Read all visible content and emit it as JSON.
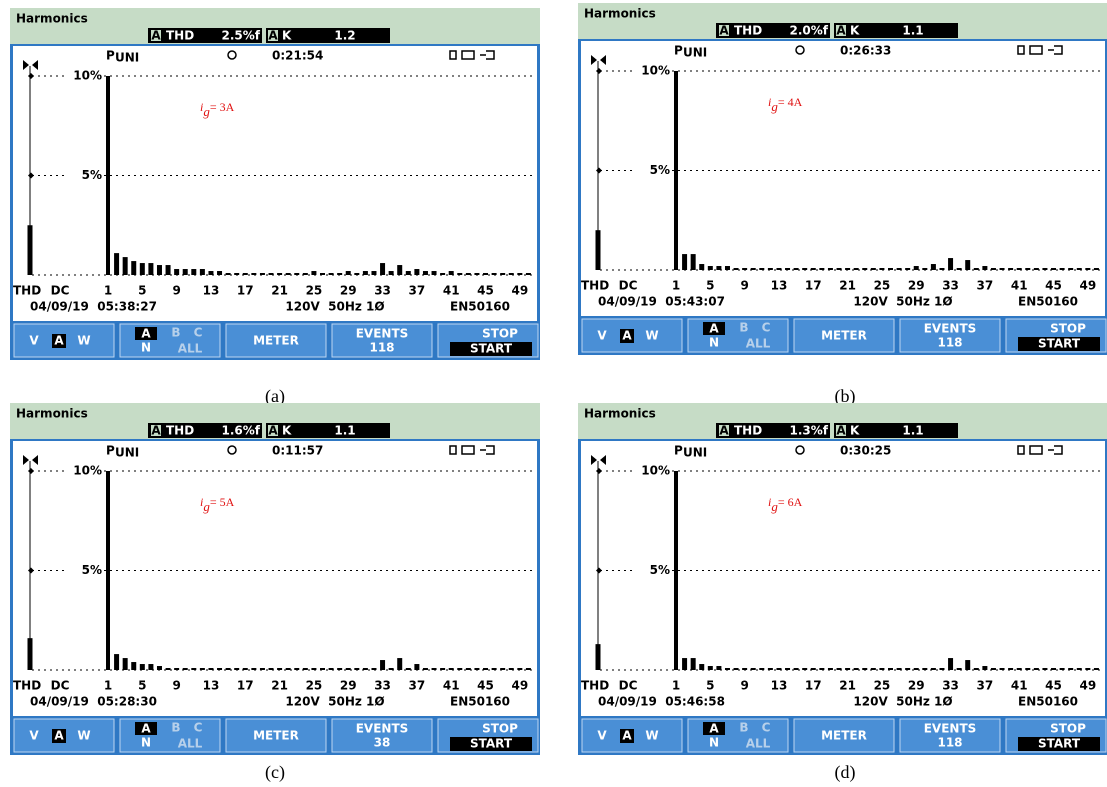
{
  "chart_data": [
    {
      "type": "bar",
      "color": "#000000",
      "annotation": {
        "symbol": "i",
        "subscript": "g",
        "text": "= 3A"
      },
      "categories": [
        "THD",
        "DC",
        "1",
        null,
        null,
        null,
        "5",
        null,
        null,
        null,
        "9",
        null,
        null,
        null,
        "13",
        null,
        null,
        null,
        "17",
        null,
        null,
        null,
        "21",
        null,
        null,
        null,
        "25",
        null,
        null,
        null,
        "29",
        null,
        null,
        null,
        "33",
        null,
        null,
        null,
        "37",
        null,
        null,
        null,
        "41",
        null,
        null,
        null,
        "45",
        null,
        null,
        null,
        "49",
        null
      ],
      "values": [
        2.5,
        0,
        10,
        1.1,
        0.9,
        0.7,
        0.6,
        0.6,
        0.5,
        0.5,
        0.3,
        0.3,
        0.3,
        0.3,
        0.2,
        0.2,
        0.1,
        0.1,
        0.1,
        0.1,
        0.1,
        0.1,
        0.1,
        0.1,
        0.1,
        0.1,
        0.2,
        0.1,
        0.1,
        0.1,
        0.2,
        0.1,
        0.2,
        0.2,
        0.6,
        0.2,
        0.5,
        0.2,
        0.3,
        0.2,
        0.2,
        0.1,
        0.2,
        0.1,
        0.1,
        0.1,
        0.1,
        0.1,
        0.1,
        0.1,
        0.1,
        0.1
      ],
      "ylim": [
        0,
        10
      ],
      "yticks": [
        {
          "value": 5,
          "label": "5%"
        },
        {
          "value": 10,
          "label": "10%"
        }
      ],
      "grid": true
    },
    {
      "type": "bar",
      "color": "#000000",
      "annotation": {
        "symbol": "i",
        "subscript": "g",
        "text": "= 4A"
      },
      "categories": [
        "THD",
        "DC",
        "1",
        null,
        null,
        null,
        "5",
        null,
        null,
        null,
        "9",
        null,
        null,
        null,
        "13",
        null,
        null,
        null,
        "17",
        null,
        null,
        null,
        "21",
        null,
        null,
        null,
        "25",
        null,
        null,
        null,
        "29",
        null,
        null,
        null,
        "33",
        null,
        null,
        null,
        "37",
        null,
        null,
        null,
        "41",
        null,
        null,
        null,
        "45",
        null,
        null,
        null,
        "49",
        null
      ],
      "values": [
        2.0,
        0,
        10,
        0.8,
        0.8,
        0.3,
        0.2,
        0.2,
        0.2,
        0.1,
        0.1,
        0.1,
        0.1,
        0.1,
        0.1,
        0.1,
        0.1,
        0.1,
        0.1,
        0.1,
        0.1,
        0.1,
        0.1,
        0.1,
        0.1,
        0.1,
        0.1,
        0.1,
        0.1,
        0.1,
        0.2,
        0.1,
        0.3,
        0.1,
        0.6,
        0.1,
        0.5,
        0.1,
        0.2,
        0.1,
        0.1,
        0.1,
        0.1,
        0.1,
        0.1,
        0.1,
        0.1,
        0.1,
        0.1,
        0.1,
        0.1,
        0.1
      ],
      "ylim": [
        0,
        10
      ],
      "yticks": [
        {
          "value": 5,
          "label": "5%"
        },
        {
          "value": 10,
          "label": "10%"
        }
      ],
      "grid": true
    },
    {
      "type": "bar",
      "color": "#000000",
      "annotation": {
        "symbol": "i",
        "subscript": "g",
        "text": "= 5A"
      },
      "categories": [
        "THD",
        "DC",
        "1",
        null,
        null,
        null,
        "5",
        null,
        null,
        null,
        "9",
        null,
        null,
        null,
        "13",
        null,
        null,
        null,
        "17",
        null,
        null,
        null,
        "21",
        null,
        null,
        null,
        "25",
        null,
        null,
        null,
        "29",
        null,
        null,
        null,
        "33",
        null,
        null,
        null,
        "37",
        null,
        null,
        null,
        "41",
        null,
        null,
        null,
        "45",
        null,
        null,
        null,
        "49",
        null
      ],
      "values": [
        1.6,
        0,
        10,
        0.8,
        0.6,
        0.4,
        0.3,
        0.3,
        0.2,
        0.1,
        0.1,
        0.1,
        0.1,
        0.1,
        0.1,
        0.1,
        0.1,
        0.1,
        0.1,
        0.1,
        0.1,
        0.1,
        0.1,
        0.1,
        0.1,
        0.1,
        0.1,
        0.1,
        0.1,
        0.1,
        0.1,
        0.1,
        0.1,
        0.1,
        0.5,
        0.1,
        0.6,
        0.1,
        0.3,
        0.1,
        0.1,
        0.1,
        0.1,
        0.1,
        0.1,
        0.1,
        0.1,
        0.1,
        0.1,
        0.1,
        0.1,
        0.1
      ],
      "ylim": [
        0,
        10
      ],
      "yticks": [
        {
          "value": 5,
          "label": "5%"
        },
        {
          "value": 10,
          "label": "10%"
        }
      ],
      "grid": true
    },
    {
      "type": "bar",
      "color": "#000000",
      "annotation": {
        "symbol": "i",
        "subscript": "g",
        "text": "= 6A"
      },
      "categories": [
        "THD",
        "DC",
        "1",
        null,
        null,
        null,
        "5",
        null,
        null,
        null,
        "9",
        null,
        null,
        null,
        "13",
        null,
        null,
        null,
        "17",
        null,
        null,
        null,
        "21",
        null,
        null,
        null,
        "25",
        null,
        null,
        null,
        "29",
        null,
        null,
        null,
        "33",
        null,
        null,
        null,
        "37",
        null,
        null,
        null,
        "41",
        null,
        null,
        null,
        "45",
        null,
        null,
        null,
        "49",
        null
      ],
      "values": [
        1.3,
        0,
        10,
        0.6,
        0.6,
        0.3,
        0.2,
        0.2,
        0.1,
        0.1,
        0.1,
        0.1,
        0.1,
        0.1,
        0.1,
        0.1,
        0.1,
        0.1,
        0.1,
        0.1,
        0.1,
        0.1,
        0.1,
        0.1,
        0.1,
        0.1,
        0.1,
        0.1,
        0.1,
        0.1,
        0.1,
        0.1,
        0.1,
        0.1,
        0.6,
        0.1,
        0.5,
        0.1,
        0.2,
        0.1,
        0.1,
        0.1,
        0.1,
        0.1,
        0.1,
        0.1,
        0.1,
        0.1,
        0.1,
        0.1,
        0.1,
        0.1
      ],
      "ylim": [
        0,
        10
      ],
      "yticks": [
        {
          "value": 5,
          "label": "5%"
        },
        {
          "value": 10,
          "label": "10%"
        }
      ],
      "grid": true
    }
  ],
  "panels": [
    {
      "title": "Harmonics",
      "phase": "A",
      "thd_label": "THD",
      "thd_value": "2.5%f",
      "k_label": "K",
      "k_value": "1.2",
      "mode": "P",
      "mode_sub": "UNI",
      "clock": "0:21:54",
      "date_time": "04/09/19  05:38:27",
      "setup": "120V  50Hz 1Ø",
      "standard": "EN50160",
      "buttons": {
        "v": "V",
        "a": "A",
        "w": "W",
        "pa": "A",
        "pb": "B",
        "pc": "C",
        "pn": "N",
        "pall": "ALL",
        "meter": "METER",
        "events": "EVENTS",
        "event_count": "118",
        "stop": "STOP",
        "start": "START"
      },
      "caption": "(a)"
    },
    {
      "title": "Harmonics",
      "phase": "A",
      "thd_label": "THD",
      "thd_value": "2.0%f",
      "k_label": "K",
      "k_value": "1.1",
      "mode": "P",
      "mode_sub": "UNI",
      "clock": "0:26:33",
      "date_time": "04/09/19  05:43:07",
      "setup": "120V  50Hz 1Ø",
      "standard": "EN50160",
      "buttons": {
        "v": "V",
        "a": "A",
        "w": "W",
        "pa": "A",
        "pb": "B",
        "pc": "C",
        "pn": "N",
        "pall": "ALL",
        "meter": "METER",
        "events": "EVENTS",
        "event_count": "118",
        "stop": "STOP",
        "start": "START"
      },
      "caption": "(b)"
    },
    {
      "title": "Harmonics",
      "phase": "A",
      "thd_label": "THD",
      "thd_value": "1.6%f",
      "k_label": "K",
      "k_value": "1.1",
      "mode": "P",
      "mode_sub": "UNI",
      "clock": "0:11:57",
      "date_time": "04/09/19  05:28:30",
      "setup": "120V  50Hz 1Ø",
      "standard": "EN50160",
      "buttons": {
        "v": "V",
        "a": "A",
        "w": "W",
        "pa": "A",
        "pb": "B",
        "pc": "C",
        "pn": "N",
        "pall": "ALL",
        "meter": "METER",
        "events": "EVENTS",
        "event_count": "38",
        "stop": "STOP",
        "start": "START"
      },
      "caption": "(c)"
    },
    {
      "title": "Harmonics",
      "phase": "A",
      "thd_label": "THD",
      "thd_value": "1.3%f",
      "k_label": "K",
      "k_value": "1.1",
      "mode": "P",
      "mode_sub": "UNI",
      "clock": "0:30:25",
      "date_time": "04/09/19  05:46:58",
      "setup": "120V  50Hz 1Ø",
      "standard": "EN50160",
      "buttons": {
        "v": "V",
        "a": "A",
        "w": "W",
        "pa": "A",
        "pb": "B",
        "pc": "C",
        "pn": "N",
        "pall": "ALL",
        "meter": "METER",
        "events": "EVENTS",
        "event_count": "118",
        "stop": "STOP",
        "start": "START"
      },
      "caption": "(d)"
    }
  ]
}
